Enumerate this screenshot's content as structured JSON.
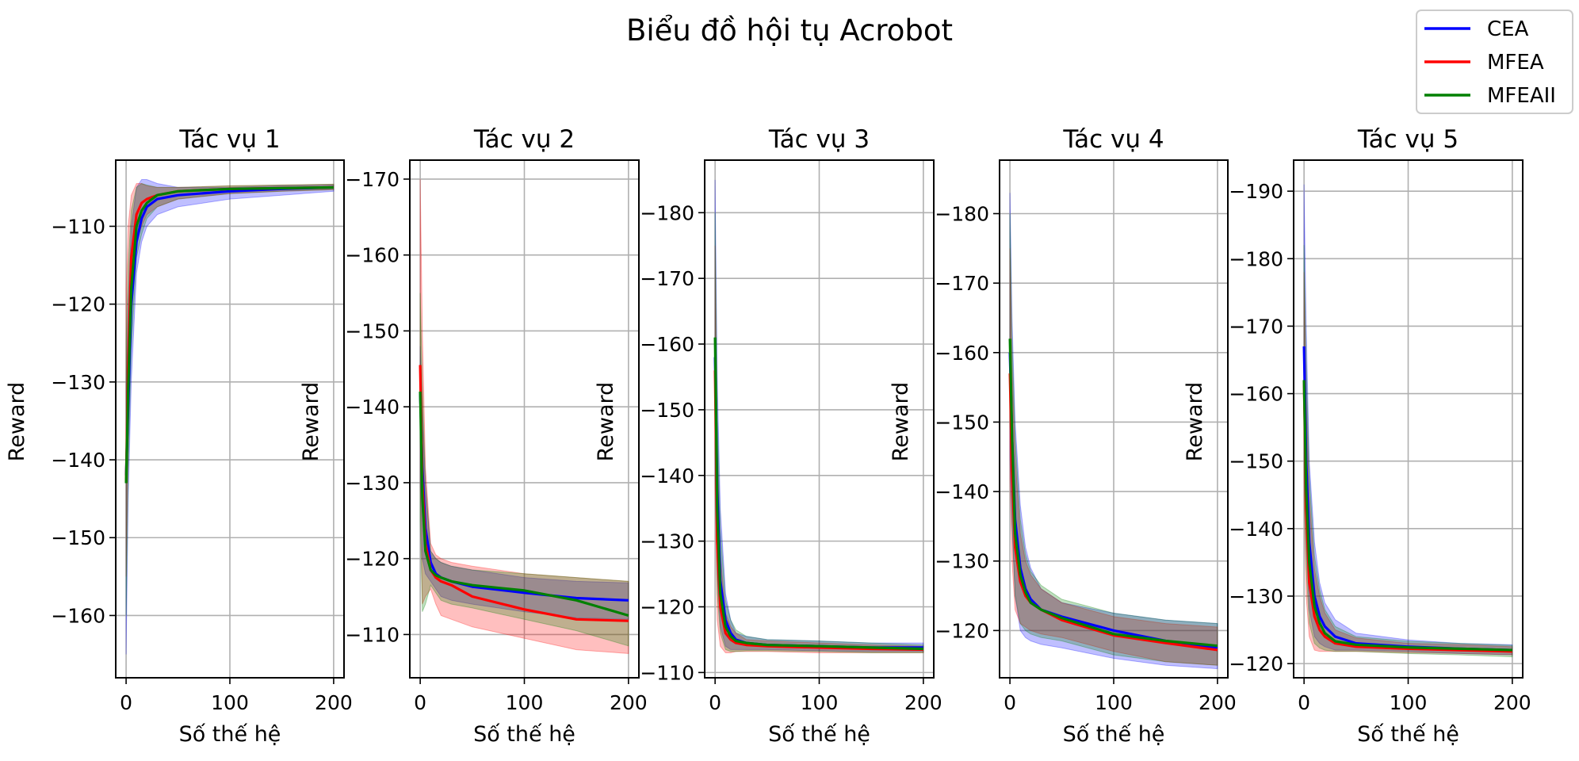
{
  "figure": {
    "title": "Biểu đồ hội tụ Acrobot",
    "legend_position": "top-right"
  },
  "legend": [
    {
      "name": "CEA",
      "color": "#0000ff"
    },
    {
      "name": "MFEA",
      "color": "#ff0000"
    },
    {
      "name": "MFEAII",
      "color": "#008000"
    }
  ],
  "chart_data": [
    {
      "type": "line",
      "title": "Tác vụ 1",
      "xlabel": "Số thế hệ",
      "ylabel": "Reward",
      "xlim": [
        -10,
        210
      ],
      "ylim": [
        -168,
        -101.5
      ],
      "xticks": [
        0,
        100,
        200
      ],
      "yticks": [
        -110,
        -120,
        -130,
        -140,
        -150,
        -160
      ],
      "ytick_side": "left",
      "grid": true,
      "series": [
        {
          "name": "CEA",
          "x": [
            0,
            2,
            5,
            10,
            15,
            20,
            30,
            50,
            100,
            150,
            200
          ],
          "y": [
            -142,
            -133,
            -120,
            -112,
            -109,
            -107.5,
            -106.5,
            -106,
            -105.5,
            -105.2,
            -105
          ],
          "lower": [
            -165,
            -145,
            -130,
            -116,
            -112,
            -110,
            -108.5,
            -107.5,
            -106.5,
            -106,
            -105.5
          ],
          "upper": [
            -130,
            -120,
            -110,
            -105,
            -104,
            -104,
            -104.5,
            -105,
            -105,
            -104.8,
            -104.7
          ]
        },
        {
          "name": "MFEA",
          "x": [
            0,
            2,
            5,
            10,
            15,
            20,
            30,
            50,
            100,
            150,
            200
          ],
          "y": [
            -143,
            -128,
            -114,
            -108.5,
            -107,
            -106.5,
            -106,
            -105.5,
            -105.2,
            -105.1,
            -105
          ],
          "lower": [
            -155,
            -138,
            -122,
            -112,
            -110,
            -108.5,
            -107.5,
            -106.5,
            -105.8,
            -105.5,
            -105.3
          ],
          "upper": [
            -118,
            -110,
            -106,
            -104.5,
            -104.5,
            -104.8,
            -105,
            -105,
            -104.8,
            -104.7,
            -104.6
          ]
        },
        {
          "name": "MFEAII",
          "x": [
            0,
            2,
            5,
            10,
            15,
            20,
            30,
            50,
            100,
            150,
            200
          ],
          "y": [
            -143,
            -131,
            -118,
            -110,
            -108,
            -107,
            -106,
            -105.5,
            -105.2,
            -105.1,
            -105
          ],
          "lower": [
            -160,
            -142,
            -126,
            -114,
            -111,
            -109,
            -107.5,
            -106.5,
            -105.8,
            -105.5,
            -105.3
          ],
          "upper": [
            -125,
            -115,
            -108,
            -105,
            -104.5,
            -104.7,
            -105,
            -105,
            -104.8,
            -104.7,
            -104.6
          ]
        }
      ]
    },
    {
      "type": "line",
      "title": "Tác vụ 2",
      "xlabel": "Số thế hệ",
      "ylabel": "Reward",
      "xlim": [
        -10,
        210
      ],
      "ylim": [
        -104.3,
        -172.5
      ],
      "xticks": [
        0,
        100,
        200
      ],
      "yticks": [
        -110,
        -120,
        -130,
        -140,
        -150,
        -160,
        -170
      ],
      "ytick_side": "left",
      "grid": true,
      "series": [
        {
          "name": "CEA",
          "x": [
            0,
            2,
            5,
            10,
            15,
            20,
            30,
            50,
            100,
            150,
            200
          ],
          "y": [
            -142,
            -132,
            -124,
            -119.5,
            -118,
            -117.5,
            -117,
            -116.3,
            -115.5,
            -114.8,
            -114.5
          ],
          "lower": [
            -148,
            -140,
            -130,
            -121,
            -120,
            -119.5,
            -119,
            -118.5,
            -117.5,
            -117,
            -116.8
          ],
          "upper": [
            -130,
            -120,
            -118,
            -117,
            -116,
            -115,
            -114.5,
            -114,
            -113,
            -112.2,
            -112
          ]
        },
        {
          "name": "MFEA",
          "x": [
            0,
            2,
            5,
            10,
            15,
            20,
            30,
            50,
            100,
            150,
            200
          ],
          "y": [
            -145.5,
            -130,
            -122,
            -118.5,
            -117.5,
            -117,
            -116.5,
            -115,
            -113.3,
            -112,
            -111.8
          ],
          "lower": [
            -170,
            -150,
            -132,
            -122,
            -120.5,
            -120,
            -119.5,
            -119,
            -118,
            -117.5,
            -117
          ],
          "upper": [
            -130,
            -114,
            -115,
            -116,
            -114,
            -112.5,
            -112,
            -111,
            -109.5,
            -108,
            -107.5
          ]
        },
        {
          "name": "MFEAII",
          "x": [
            0,
            2,
            5,
            10,
            15,
            20,
            30,
            50,
            100,
            150,
            200
          ],
          "y": [
            -142,
            -128,
            -121,
            -118.5,
            -117.8,
            -117.5,
            -117,
            -116.5,
            -115.8,
            -114.5,
            -112.5
          ],
          "lower": [
            -155,
            -143,
            -130,
            -121,
            -120,
            -119.5,
            -119,
            -118.5,
            -118,
            -117.5,
            -117
          ],
          "upper": [
            -125,
            -113,
            -114,
            -116.5,
            -115.5,
            -114.5,
            -114,
            -113.5,
            -112,
            -110.5,
            -108.5
          ]
        }
      ]
    },
    {
      "type": "line",
      "title": "Tác vụ 3",
      "xlabel": "Số thế hệ",
      "ylabel": "Reward",
      "xlim": [
        -10,
        210
      ],
      "ylim": [
        -109.2,
        -188
      ],
      "xticks": [
        0,
        100,
        200
      ],
      "yticks": [
        -110,
        -120,
        -130,
        -140,
        -150,
        -160,
        -170,
        -180
      ],
      "ytick_side": "left",
      "grid": true,
      "series": [
        {
          "name": "CEA",
          "x": [
            0,
            2,
            5,
            10,
            15,
            20,
            30,
            50,
            100,
            150,
            200
          ],
          "y": [
            -158,
            -138,
            -124,
            -118,
            -116,
            -115,
            -114.5,
            -114.2,
            -114,
            -113.8,
            -113.8
          ],
          "lower": [
            -185,
            -155,
            -135,
            -122,
            -118,
            -116,
            -115.5,
            -115,
            -114.8,
            -114.5,
            -114.5
          ],
          "upper": [
            -140,
            -125,
            -117,
            -114,
            -113.5,
            -113.5,
            -113.5,
            -113.5,
            -113.3,
            -113.2,
            -113.2
          ]
        },
        {
          "name": "MFEA",
          "x": [
            0,
            2,
            5,
            10,
            15,
            20,
            30,
            50,
            100,
            150,
            200
          ],
          "y": [
            -156,
            -130,
            -120,
            -116,
            -115,
            -114.5,
            -114.2,
            -114,
            -113.8,
            -113.6,
            -113.5
          ],
          "lower": [
            -175,
            -145,
            -128,
            -119,
            -117,
            -116,
            -115,
            -114.8,
            -114.5,
            -114.2,
            -114
          ],
          "upper": [
            -138,
            -118,
            -114,
            -113,
            -113,
            -113.2,
            -113.2,
            -113.2,
            -113,
            -113,
            -113
          ]
        },
        {
          "name": "MFEAII",
          "x": [
            0,
            2,
            5,
            10,
            15,
            20,
            30,
            50,
            100,
            150,
            200
          ],
          "y": [
            -161,
            -135,
            -122,
            -117,
            -115.5,
            -114.8,
            -114.5,
            -114.2,
            -114,
            -113.8,
            -113.6
          ],
          "lower": [
            -180,
            -150,
            -132,
            -121,
            -118,
            -116.5,
            -115.5,
            -115,
            -114.8,
            -114.5,
            -114.2
          ],
          "upper": [
            -145,
            -122,
            -116,
            -113.5,
            -113.2,
            -113.2,
            -113.3,
            -113.3,
            -113.2,
            -113,
            -113
          ]
        }
      ]
    },
    {
      "type": "line",
      "title": "Tác vụ 4",
      "xlabel": "Số thế hệ",
      "ylabel": "Reward",
      "xlim": [
        -10,
        210
      ],
      "ylim": [
        -113.2,
        -187.7
      ],
      "xticks": [
        0,
        100,
        200
      ],
      "yticks": [
        -120,
        -130,
        -140,
        -150,
        -160,
        -170,
        -180
      ],
      "ytick_side": "left",
      "grid": true,
      "series": [
        {
          "name": "CEA",
          "x": [
            0,
            2,
            5,
            10,
            15,
            20,
            30,
            50,
            100,
            150,
            200
          ],
          "y": [
            -160,
            -148,
            -136,
            -129,
            -126,
            -124.5,
            -123,
            -122,
            -120,
            -118.5,
            -117.5
          ],
          "lower": [
            -183,
            -165,
            -150,
            -138,
            -132,
            -129,
            -126,
            -124,
            -122.5,
            -121.5,
            -121
          ],
          "upper": [
            -145,
            -135,
            -125,
            -120,
            -119,
            -118.5,
            -118,
            -117.5,
            -116,
            -115,
            -114.5
          ]
        },
        {
          "name": "MFEA",
          "x": [
            0,
            2,
            5,
            10,
            15,
            20,
            30,
            50,
            100,
            150,
            200
          ],
          "y": [
            -157,
            -143,
            -132,
            -127,
            -125,
            -124,
            -123,
            -121.5,
            -119.3,
            -118.2,
            -117.2
          ],
          "lower": [
            -175,
            -158,
            -145,
            -134,
            -130,
            -128,
            -126,
            -124,
            -122,
            -121,
            -120.5
          ],
          "upper": [
            -142,
            -130,
            -123,
            -121,
            -120.5,
            -120,
            -119.5,
            -119,
            -117,
            -115.5,
            -115
          ]
        },
        {
          "name": "MFEAII",
          "x": [
            0,
            2,
            5,
            10,
            15,
            20,
            30,
            50,
            100,
            150,
            200
          ],
          "y": [
            -162,
            -148,
            -134,
            -128,
            -125.5,
            -124,
            -123,
            -121.8,
            -119.5,
            -118.5,
            -117.8
          ],
          "lower": [
            -180,
            -162,
            -148,
            -136,
            -131,
            -128.5,
            -126.5,
            -124.5,
            -122.5,
            -121.5,
            -121
          ],
          "upper": [
            -150,
            -136,
            -125,
            -121,
            -120,
            -119.5,
            -119,
            -118.5,
            -116.5,
            -115.5,
            -115
          ]
        }
      ]
    },
    {
      "type": "line",
      "title": "Tác vụ 5",
      "xlabel": "Số thế hệ",
      "ylabel": "Reward",
      "xlim": [
        -10,
        210
      ],
      "ylim": [
        -117.9,
        -194.6
      ],
      "xticks": [
        0,
        100,
        200
      ],
      "yticks": [
        -120,
        -130,
        -140,
        -150,
        -160,
        -170,
        -180,
        -190
      ],
      "ytick_side": "left",
      "grid": true,
      "series": [
        {
          "name": "CEA",
          "x": [
            0,
            2,
            5,
            10,
            15,
            20,
            30,
            50,
            100,
            150,
            200
          ],
          "y": [
            -167,
            -150,
            -138,
            -130,
            -127,
            -125.5,
            -124,
            -123,
            -122.5,
            -122.2,
            -122
          ],
          "lower": [
            -191,
            -170,
            -150,
            -138,
            -132,
            -129,
            -126.5,
            -124.5,
            -123.5,
            -123,
            -122.8
          ],
          "upper": [
            -150,
            -138,
            -128,
            -124,
            -123,
            -122.5,
            -122,
            -122,
            -121.8,
            -121.5,
            -121.3
          ]
        },
        {
          "name": "MFEA",
          "x": [
            0,
            2,
            5,
            10,
            15,
            20,
            30,
            50,
            100,
            150,
            200
          ],
          "y": [
            -162,
            -143,
            -132,
            -127,
            -125,
            -124,
            -123,
            -122.5,
            -122.2,
            -122,
            -121.8
          ],
          "lower": [
            -178,
            -160,
            -145,
            -134,
            -130,
            -127.5,
            -125,
            -123.8,
            -123,
            -122.8,
            -122.5
          ],
          "upper": [
            -145,
            -130,
            -124,
            -122,
            -121.8,
            -121.8,
            -121.8,
            -121.8,
            -121.6,
            -121.5,
            -121.3
          ]
        },
        {
          "name": "MFEAII",
          "x": [
            0,
            2,
            5,
            10,
            15,
            20,
            30,
            50,
            100,
            150,
            200
          ],
          "y": [
            -162,
            -146,
            -135,
            -128.5,
            -126,
            -124.5,
            -123.3,
            -122.8,
            -122.4,
            -122.2,
            -122
          ],
          "lower": [
            -182,
            -165,
            -148,
            -136,
            -131,
            -128,
            -125.5,
            -124,
            -123.3,
            -123,
            -122.7
          ],
          "upper": [
            -148,
            -134,
            -126,
            -123,
            -122.3,
            -122,
            -121.8,
            -121.8,
            -121.5,
            -121.3,
            -121
          ]
        }
      ]
    }
  ]
}
